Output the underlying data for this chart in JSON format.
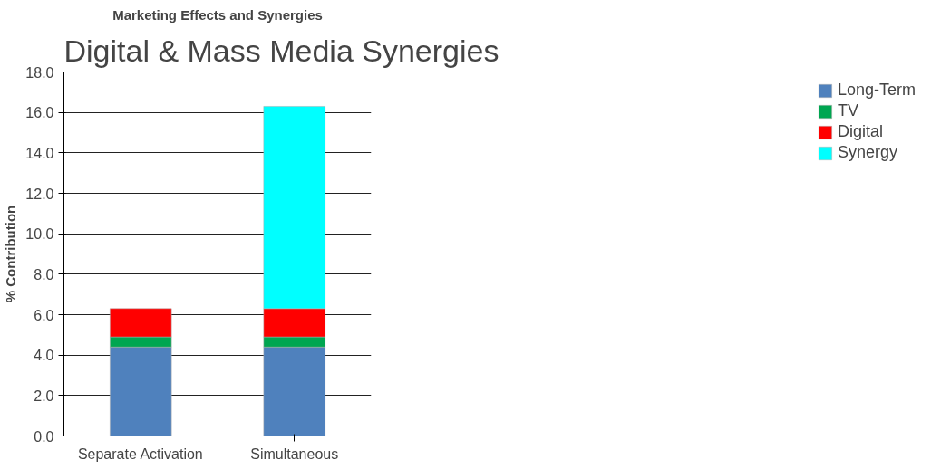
{
  "chart_data": {
    "type": "bar",
    "title": "Digital & Mass Media Synergies",
    "subtitle": "Marketing Effects and Synergies",
    "ylabel": "% Contribution",
    "categories": [
      "Separate Activation",
      "Simultaneous"
    ],
    "stacked": true,
    "series": [
      {
        "name": "Long-Term",
        "color": "#4f81bd",
        "values": [
          4.4,
          4.4
        ]
      },
      {
        "name": "TV",
        "color": "#00a651",
        "values": [
          0.5,
          0.5
        ]
      },
      {
        "name": "Digital",
        "color": "#ff0000",
        "values": [
          1.4,
          1.4
        ]
      },
      {
        "name": "Synergy",
        "color": "#00ffff",
        "values": [
          null,
          10.0
        ]
      }
    ],
    "ylim": [
      0,
      18
    ],
    "yticks": [
      {
        "value": 0,
        "label": "0.0"
      },
      {
        "value": 2,
        "label": "2.0"
      },
      {
        "value": 4,
        "label": "4.0"
      },
      {
        "value": 6,
        "label": "6.0"
      },
      {
        "value": 8,
        "label": "8.0"
      },
      {
        "value": 10,
        "label": "10.0"
      },
      {
        "value": 12,
        "label": "12.0"
      },
      {
        "value": 14,
        "label": "14.0"
      },
      {
        "value": 16,
        "label": "16.0"
      },
      {
        "value": 18,
        "label": "18.0"
      }
    ],
    "grid": "y",
    "legend": "right"
  }
}
